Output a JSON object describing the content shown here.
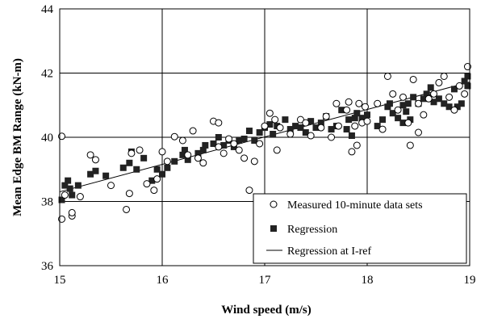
{
  "chart_data": {
    "type": "scatter",
    "xlabel": "Wind speed (m/s)",
    "ylabel": "Mean Edge BM Range (kN-m)",
    "xlim": [
      15,
      19
    ],
    "ylim": [
      36,
      44
    ],
    "xticks": [
      "15",
      "16",
      "17",
      "18",
      "19"
    ],
    "yticks": [
      "36",
      "38",
      "40",
      "42",
      "44"
    ],
    "grid": true,
    "legend_position": "bottom-right",
    "series": [
      {
        "name": "Measured 10-minute data sets",
        "marker": "open-circle",
        "points": [
          [
            15.02,
            40.03
          ],
          [
            15.02,
            37.45
          ],
          [
            15.05,
            38.2
          ],
          [
            15.12,
            37.55
          ],
          [
            15.12,
            37.65
          ],
          [
            15.2,
            38.15
          ],
          [
            15.3,
            39.45
          ],
          [
            15.35,
            39.3
          ],
          [
            15.5,
            38.5
          ],
          [
            15.65,
            37.75
          ],
          [
            15.68,
            38.25
          ],
          [
            15.7,
            39.5
          ],
          [
            15.78,
            39.6
          ],
          [
            15.85,
            38.55
          ],
          [
            15.92,
            38.35
          ],
          [
            15.95,
            38.7
          ],
          [
            16.0,
            39.55
          ],
          [
            16.05,
            39.25
          ],
          [
            16.12,
            40.02
          ],
          [
            16.2,
            39.9
          ],
          [
            16.25,
            39.45
          ],
          [
            16.3,
            40.2
          ],
          [
            16.35,
            39.35
          ],
          [
            16.4,
            39.2
          ],
          [
            16.5,
            40.5
          ],
          [
            16.55,
            40.45
          ],
          [
            16.55,
            39.7
          ],
          [
            16.6,
            39.5
          ],
          [
            16.65,
            39.95
          ],
          [
            16.7,
            39.8
          ],
          [
            16.75,
            39.6
          ],
          [
            16.8,
            39.35
          ],
          [
            16.85,
            38.35
          ],
          [
            16.9,
            39.25
          ],
          [
            16.95,
            39.8
          ],
          [
            17.0,
            40.35
          ],
          [
            17.05,
            40.75
          ],
          [
            17.1,
            40.55
          ],
          [
            17.12,
            39.6
          ],
          [
            17.15,
            40.3
          ],
          [
            17.25,
            40.1
          ],
          [
            17.35,
            40.55
          ],
          [
            17.4,
            40.45
          ],
          [
            17.45,
            40.05
          ],
          [
            17.55,
            40.3
          ],
          [
            17.6,
            40.65
          ],
          [
            17.65,
            40.0
          ],
          [
            17.7,
            41.05
          ],
          [
            17.72,
            40.35
          ],
          [
            17.8,
            40.85
          ],
          [
            17.82,
            41.1
          ],
          [
            17.85,
            39.55
          ],
          [
            17.88,
            40.35
          ],
          [
            17.9,
            39.75
          ],
          [
            17.92,
            41.05
          ],
          [
            17.95,
            40.45
          ],
          [
            17.98,
            40.95
          ],
          [
            18.0,
            40.5
          ],
          [
            18.1,
            41.05
          ],
          [
            18.15,
            40.25
          ],
          [
            18.2,
            41.9
          ],
          [
            18.25,
            41.35
          ],
          [
            18.3,
            40.85
          ],
          [
            18.35,
            41.25
          ],
          [
            18.4,
            40.45
          ],
          [
            18.45,
            41.8
          ],
          [
            18.5,
            41.05
          ],
          [
            18.55,
            40.7
          ],
          [
            18.6,
            41.2
          ],
          [
            18.65,
            41.35
          ],
          [
            18.7,
            41.7
          ],
          [
            18.75,
            41.9
          ],
          [
            18.8,
            41.25
          ],
          [
            18.85,
            40.85
          ],
          [
            18.9,
            41.6
          ],
          [
            18.95,
            41.35
          ],
          [
            18.98,
            42.2
          ],
          [
            18.5,
            40.15
          ],
          [
            18.42,
            39.75
          ]
        ]
      },
      {
        "name": "Regression",
        "marker": "filled-square",
        "points": [
          [
            15.02,
            38.05
          ],
          [
            15.05,
            38.5
          ],
          [
            15.08,
            38.65
          ],
          [
            15.1,
            38.4
          ],
          [
            15.12,
            38.2
          ],
          [
            15.18,
            38.5
          ],
          [
            15.3,
            38.85
          ],
          [
            15.35,
            38.95
          ],
          [
            15.45,
            38.8
          ],
          [
            15.62,
            39.05
          ],
          [
            15.68,
            39.2
          ],
          [
            15.7,
            39.55
          ],
          [
            15.75,
            39.0
          ],
          [
            15.82,
            39.35
          ],
          [
            15.9,
            38.65
          ],
          [
            15.95,
            39.0
          ],
          [
            16.0,
            38.85
          ],
          [
            16.05,
            39.05
          ],
          [
            16.12,
            39.25
          ],
          [
            16.2,
            39.45
          ],
          [
            16.22,
            39.6
          ],
          [
            16.25,
            39.3
          ],
          [
            16.35,
            39.5
          ],
          [
            16.4,
            39.6
          ],
          [
            16.42,
            39.75
          ],
          [
            16.5,
            39.8
          ],
          [
            16.55,
            40.0
          ],
          [
            16.6,
            39.75
          ],
          [
            16.65,
            39.9
          ],
          [
            16.7,
            39.7
          ],
          [
            16.75,
            39.9
          ],
          [
            16.8,
            39.95
          ],
          [
            16.85,
            40.2
          ],
          [
            16.9,
            39.9
          ],
          [
            16.95,
            40.15
          ],
          [
            17.0,
            40.3
          ],
          [
            17.05,
            40.4
          ],
          [
            17.08,
            40.1
          ],
          [
            17.12,
            40.35
          ],
          [
            17.2,
            40.55
          ],
          [
            17.25,
            40.25
          ],
          [
            17.3,
            40.35
          ],
          [
            17.35,
            40.3
          ],
          [
            17.4,
            40.15
          ],
          [
            17.45,
            40.5
          ],
          [
            17.5,
            40.3
          ],
          [
            17.55,
            40.45
          ],
          [
            17.6,
            40.65
          ],
          [
            17.65,
            40.25
          ],
          [
            17.7,
            40.35
          ],
          [
            17.75,
            40.85
          ],
          [
            17.8,
            40.25
          ],
          [
            17.82,
            40.55
          ],
          [
            17.85,
            40.05
          ],
          [
            17.88,
            40.6
          ],
          [
            17.9,
            40.75
          ],
          [
            17.95,
            40.6
          ],
          [
            18.0,
            40.7
          ],
          [
            18.1,
            40.35
          ],
          [
            18.15,
            40.55
          ],
          [
            18.2,
            40.95
          ],
          [
            18.22,
            41.05
          ],
          [
            18.25,
            40.75
          ],
          [
            18.3,
            40.6
          ],
          [
            18.35,
            41.0
          ],
          [
            18.4,
            41.05
          ],
          [
            18.42,
            40.55
          ],
          [
            18.45,
            41.25
          ],
          [
            18.5,
            41.05
          ],
          [
            18.55,
            41.2
          ],
          [
            18.6,
            41.25
          ],
          [
            18.62,
            41.55
          ],
          [
            18.65,
            41.1
          ],
          [
            18.7,
            41.2
          ],
          [
            18.75,
            41.05
          ],
          [
            18.8,
            40.95
          ],
          [
            18.85,
            41.5
          ],
          [
            18.88,
            40.95
          ],
          [
            18.92,
            41.05
          ],
          [
            18.95,
            41.75
          ],
          [
            18.98,
            41.6
          ],
          [
            18.98,
            41.9
          ],
          [
            18.58,
            41.35
          ],
          [
            18.38,
            40.8
          ],
          [
            18.35,
            40.45
          ]
        ]
      },
      {
        "name": "Regression at I-ref",
        "marker": "line",
        "points": [
          [
            15.0,
            38.3
          ],
          [
            19.0,
            41.72
          ]
        ]
      }
    ]
  }
}
